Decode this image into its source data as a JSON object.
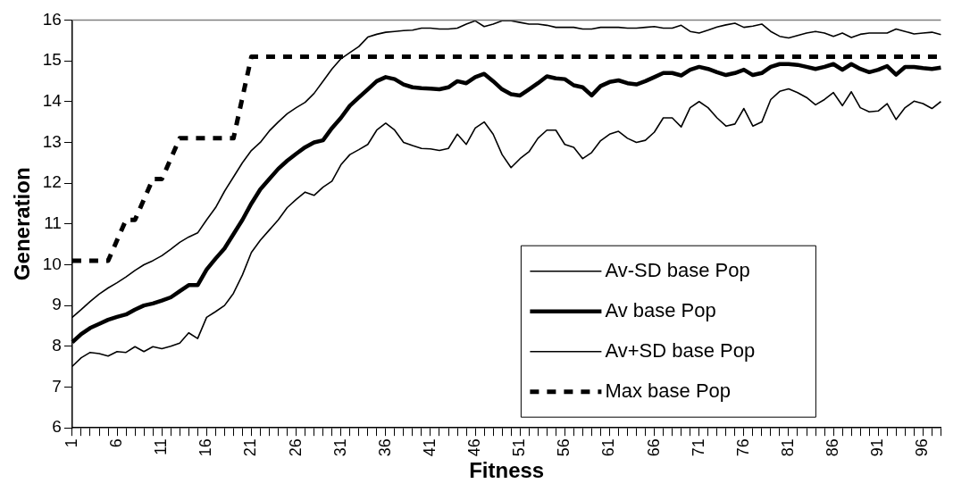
{
  "chart_data": {
    "type": "line",
    "xlabel": "Fitness",
    "ylabel": "Generation",
    "categories": [
      "1",
      null,
      null,
      null,
      null,
      "6",
      null,
      null,
      null,
      null,
      "11",
      null,
      null,
      null,
      null,
      "16",
      null,
      null,
      null,
      null,
      "21",
      null,
      null,
      null,
      null,
      "26",
      null,
      null,
      null,
      null,
      "31",
      null,
      null,
      null,
      null,
      "36",
      null,
      null,
      null,
      null,
      "41",
      null,
      null,
      null,
      null,
      "46",
      null,
      null,
      null,
      null,
      "51",
      null,
      null,
      null,
      null,
      "56",
      null,
      null,
      null,
      null,
      "61",
      null,
      null,
      null,
      null,
      "66",
      null,
      null,
      null,
      null,
      "71",
      null,
      null,
      null,
      null,
      "76",
      null,
      null,
      null,
      null,
      "81",
      null,
      null,
      null,
      null,
      "86",
      null,
      null,
      null,
      null,
      "91",
      null,
      null,
      null,
      null,
      "96",
      null,
      null
    ],
    "ylim": [
      6,
      16
    ],
    "yticks": [
      6,
      7,
      8,
      9,
      10,
      11,
      12,
      13,
      14,
      15,
      16
    ],
    "grid": false,
    "legend": "bottom right",
    "marker": "none",
    "series": [
      {
        "name": "Av-SD base Pop",
        "color": "#000000",
        "line_style": "solid",
        "values": [
          7.51,
          7.72,
          7.85,
          7.82,
          7.76,
          7.87,
          7.85,
          7.99,
          7.87,
          7.99,
          7.94,
          8.0,
          8.08,
          8.33,
          8.19,
          8.71,
          8.85,
          9.0,
          9.3,
          9.75,
          10.3,
          10.6,
          10.85,
          11.1,
          11.4,
          11.6,
          11.78,
          11.7,
          11.9,
          12.05,
          12.45,
          12.7,
          12.82,
          12.95,
          13.3,
          13.47,
          13.3,
          13.0,
          12.92,
          12.85,
          12.84,
          12.8,
          12.85,
          13.2,
          12.95,
          13.35,
          13.5,
          13.2,
          12.7,
          12.38,
          12.6,
          12.77,
          13.1,
          13.3,
          13.3,
          12.95,
          12.88,
          12.6,
          12.75,
          13.04,
          13.2,
          13.27,
          13.1,
          13.0,
          13.05,
          13.25,
          13.6,
          13.6,
          13.38,
          13.85,
          14.0,
          13.85,
          13.6,
          13.4,
          13.45,
          13.83,
          13.4,
          13.5,
          14.05,
          14.25,
          14.31,
          14.22,
          14.1,
          13.92,
          14.05,
          14.22,
          13.9,
          14.24,
          13.85,
          13.75,
          13.77,
          13.95,
          13.56,
          13.85,
          14.01,
          13.95,
          13.83,
          14.0
        ]
      },
      {
        "name": "Av base Pop",
        "color": "#000000",
        "line_style": "solid",
        "values": [
          8.1,
          8.3,
          8.45,
          8.55,
          8.65,
          8.72,
          8.78,
          8.9,
          9.0,
          9.05,
          9.12,
          9.2,
          9.35,
          9.5,
          9.5,
          9.88,
          10.15,
          10.4,
          10.75,
          11.1,
          11.5,
          11.85,
          12.1,
          12.35,
          12.55,
          12.72,
          12.88,
          13.0,
          13.05,
          13.35,
          13.6,
          13.9,
          14.1,
          14.3,
          14.5,
          14.6,
          14.55,
          14.42,
          14.35,
          14.33,
          14.32,
          14.3,
          14.35,
          14.5,
          14.45,
          14.6,
          14.68,
          14.5,
          14.3,
          14.18,
          14.15,
          14.3,
          14.45,
          14.62,
          14.57,
          14.55,
          14.4,
          14.35,
          14.15,
          14.38,
          14.48,
          14.52,
          14.45,
          14.42,
          14.5,
          14.6,
          14.7,
          14.7,
          14.64,
          14.78,
          14.85,
          14.8,
          14.72,
          14.65,
          14.7,
          14.78,
          14.65,
          14.7,
          14.85,
          14.92,
          14.92,
          14.9,
          14.85,
          14.8,
          14.85,
          14.92,
          14.78,
          14.92,
          14.8,
          14.72,
          14.78,
          14.87,
          14.66,
          14.85,
          14.85,
          14.82,
          14.8,
          14.83
        ]
      },
      {
        "name": "Av+SD base Pop",
        "color": "#000000",
        "line_style": "solid",
        "values": [
          8.71,
          8.9,
          9.1,
          9.28,
          9.43,
          9.56,
          9.7,
          9.86,
          10.0,
          10.1,
          10.22,
          10.38,
          10.55,
          10.68,
          10.78,
          11.1,
          11.4,
          11.8,
          12.15,
          12.5,
          12.8,
          13.0,
          13.28,
          13.5,
          13.7,
          13.85,
          13.98,
          14.2,
          14.5,
          14.8,
          15.05,
          15.2,
          15.35,
          15.58,
          15.65,
          15.7,
          15.72,
          15.74,
          15.75,
          15.8,
          15.8,
          15.78,
          15.78,
          15.8,
          15.9,
          15.98,
          15.84,
          15.9,
          15.98,
          15.98,
          15.94,
          15.9,
          15.9,
          15.87,
          15.82,
          15.82,
          15.82,
          15.78,
          15.78,
          15.82,
          15.82,
          15.82,
          15.8,
          15.8,
          15.82,
          15.84,
          15.8,
          15.8,
          15.87,
          15.72,
          15.68,
          15.75,
          15.83,
          15.88,
          15.92,
          15.82,
          15.85,
          15.9,
          15.72,
          15.6,
          15.56,
          15.62,
          15.68,
          15.72,
          15.68,
          15.6,
          15.68,
          15.57,
          15.65,
          15.68,
          15.68,
          15.68,
          15.78,
          15.72,
          15.66,
          15.68,
          15.7,
          15.64
        ]
      },
      {
        "name": "Max base Pop",
        "color": "#000000",
        "line_style": "dashed",
        "values": [
          10.1,
          10.1,
          10.1,
          10.1,
          10.1,
          10.6,
          11.1,
          11.1,
          11.6,
          12.1,
          12.1,
          12.6,
          13.1,
          13.1,
          13.1,
          13.1,
          13.1,
          13.1,
          13.1,
          14.1,
          15.1,
          15.1,
          15.1,
          15.1,
          15.1,
          15.1,
          15.1,
          15.1,
          15.1,
          15.1,
          15.1,
          15.1,
          15.1,
          15.1,
          15.1,
          15.1,
          15.1,
          15.1,
          15.1,
          15.1,
          15.1,
          15.1,
          15.1,
          15.1,
          15.1,
          15.1,
          15.1,
          15.1,
          15.1,
          15.1,
          15.1,
          15.1,
          15.1,
          15.1,
          15.1,
          15.1,
          15.1,
          15.1,
          15.1,
          15.1,
          15.1,
          15.1,
          15.1,
          15.1,
          15.1,
          15.1,
          15.1,
          15.1,
          15.1,
          15.1,
          15.1,
          15.1,
          15.1,
          15.1,
          15.1,
          15.1,
          15.1,
          15.1,
          15.1,
          15.1,
          15.1,
          15.1,
          15.1,
          15.1,
          15.1,
          15.1,
          15.1,
          15.1,
          15.1,
          15.1,
          15.1,
          15.1,
          15.1,
          15.1,
          15.1,
          15.1,
          15.1,
          15.1
        ]
      }
    ]
  }
}
